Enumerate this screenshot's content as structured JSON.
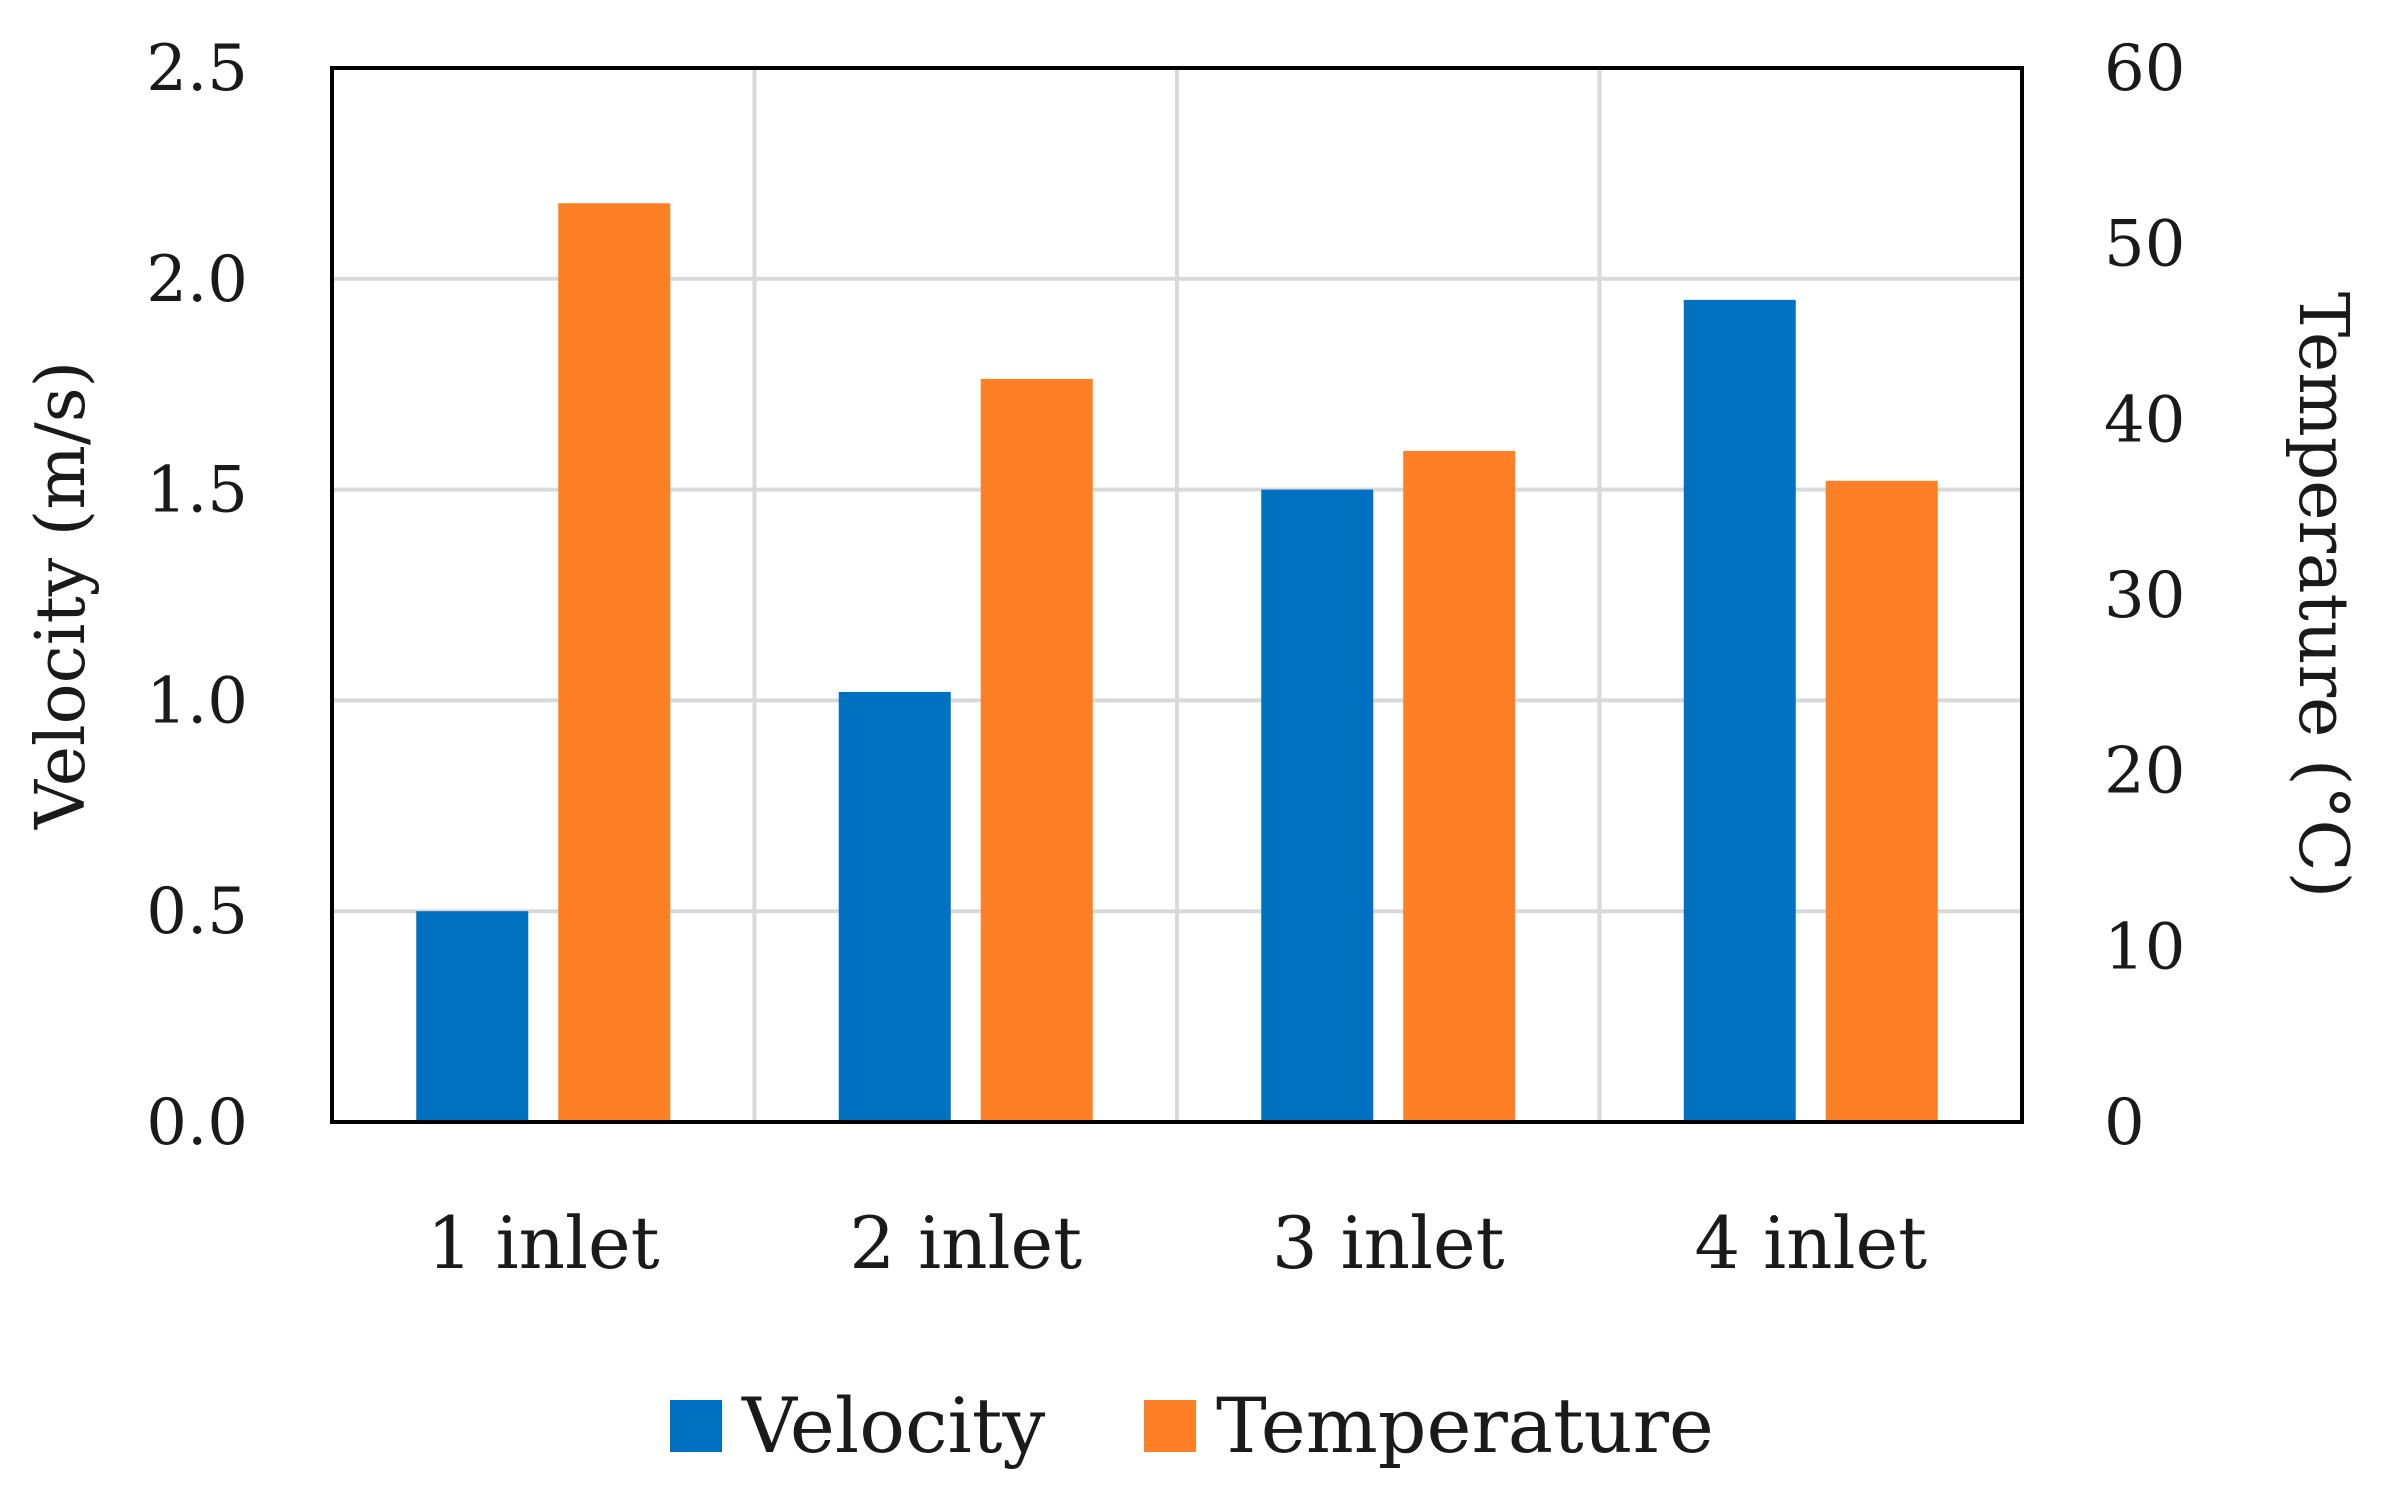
{
  "chart_data": {
    "type": "bar",
    "categories": [
      "1 inlet",
      "2 inlet",
      "3 inlet",
      "4 inlet"
    ],
    "series": [
      {
        "name": "Velocity",
        "axis": "left",
        "color": "#0070C0",
        "values": [
          0.5,
          1.02,
          1.5,
          1.95
        ]
      },
      {
        "name": "Temperature",
        "axis": "right",
        "color": "#FF7F27",
        "values": [
          52.3,
          42.3,
          38.2,
          36.5
        ]
      }
    ],
    "ylabel": "Velocity (m/s)",
    "ylabel_right": "Temperature (°C)",
    "ylim": [
      0,
      2.5
    ],
    "ylim_right": [
      0,
      60
    ],
    "yticks": [
      "0.0",
      "0.5",
      "1.0",
      "1.5",
      "2.0",
      "2.5"
    ],
    "yticks_right": [
      "0",
      "10",
      "20",
      "30",
      "40",
      "50",
      "60"
    ],
    "grid": true,
    "legend": {
      "position": "bottom",
      "entries": [
        "Velocity",
        "Temperature"
      ]
    }
  }
}
